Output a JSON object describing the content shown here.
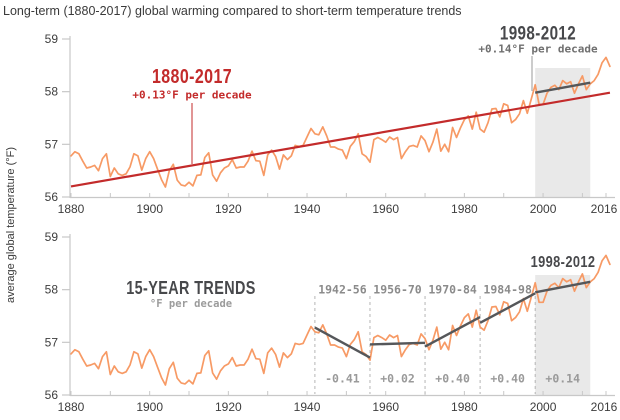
{
  "title": "Long-term (1880-2017) global warming compared to short-term temperature trends",
  "y_axis": {
    "label": "average global temperature (°F)",
    "ticks": [
      "56",
      "57",
      "58",
      "59"
    ],
    "min": 56,
    "max": 59
  },
  "x_axis": {
    "labels": [
      "1880",
      "1900",
      "1920",
      "1940",
      "1960",
      "1980",
      "2000",
      "2016"
    ],
    "label_years": [
      1880,
      1900,
      1920,
      1940,
      1960,
      1980,
      2000,
      2016
    ],
    "minor_tick_step_years": 10
  },
  "colors": {
    "series": "#f79a65",
    "longterm_trend": "#c32b2b",
    "shortterm_trend": "#55575a",
    "highlight_band": "#e9e9e9",
    "dashed_divider": "#b5b5b5",
    "axis": "#c8c8c8",
    "callout_gray": "#9a9a9a",
    "text_dark": "#3a3a3a",
    "text_gray": "#9b9b9b"
  },
  "top_panel": {
    "longterm_label": "1880-2017",
    "longterm_rate": "+0.13°F per decade",
    "shortterm_label": "1998-2012",
    "shortterm_rate": "+0.14°F per decade"
  },
  "bottom_panel": {
    "heading": "15-YEAR TRENDS",
    "subheading": "°F per decade"
  },
  "chart_data": {
    "type": "line",
    "title": "Long-term (1880-2017) global warming compared to short-term temperature trends",
    "ylabel": "average global temperature (°F)",
    "ylim": [
      56,
      59
    ],
    "xlim": [
      1880,
      2017
    ],
    "x_tick_labels": [
      1880,
      1900,
      1920,
      1940,
      1960,
      1980,
      2000,
      2016
    ],
    "grid": false,
    "legend": false,
    "panels": [
      "long-term trend (top)",
      "15-year trends (bottom)"
    ],
    "series": [
      {
        "name": "annual average global temperature (°F)",
        "x_start": 1880,
        "x_step": 1,
        "values": [
          56.78,
          56.86,
          56.82,
          56.68,
          56.55,
          56.57,
          56.6,
          56.5,
          56.73,
          56.82,
          56.39,
          56.55,
          56.44,
          56.41,
          56.44,
          56.57,
          56.82,
          56.78,
          56.51,
          56.73,
          56.86,
          56.73,
          56.53,
          56.33,
          56.19,
          56.5,
          56.62,
          56.32,
          56.23,
          56.21,
          56.28,
          56.21,
          56.41,
          56.42,
          56.75,
          56.84,
          56.42,
          56.3,
          56.46,
          56.55,
          56.59,
          56.71,
          56.55,
          56.57,
          56.57,
          56.68,
          56.87,
          56.69,
          56.68,
          56.41,
          56.8,
          56.89,
          56.77,
          56.53,
          56.8,
          56.71,
          56.78,
          56.98,
          56.96,
          56.98,
          57.14,
          57.3,
          57.2,
          57.18,
          57.33,
          57.16,
          56.95,
          56.95,
          56.91,
          56.89,
          56.73,
          56.96,
          57.05,
          57.2,
          56.82,
          56.77,
          56.66,
          57.09,
          57.13,
          57.09,
          57.04,
          57.14,
          57.09,
          57.13,
          56.73,
          56.86,
          56.96,
          56.98,
          56.95,
          57.16,
          57.07,
          56.86,
          57.04,
          57.29,
          56.87,
          57.0,
          56.86,
          57.32,
          57.13,
          57.31,
          57.47,
          57.54,
          57.29,
          57.61,
          57.29,
          57.23,
          57.41,
          57.67,
          57.68,
          57.52,
          57.77,
          57.74,
          57.41,
          57.47,
          57.58,
          57.83,
          57.59,
          57.86,
          58.13,
          57.76,
          57.76,
          57.97,
          58.08,
          58.12,
          58.04,
          58.21,
          58.15,
          58.19,
          57.97,
          58.15,
          58.3,
          58.04,
          58.15,
          58.21,
          58.33,
          58.55,
          58.65,
          58.48
        ]
      }
    ],
    "trends": {
      "long_term": {
        "period": "1880-2017",
        "rate_label": "+0.13°F per decade",
        "rate_f_per_decade": 0.13,
        "start": {
          "year": 1880,
          "temp": 56.2
        },
        "end": {
          "year": 2017,
          "temp": 57.98
        }
      },
      "top_short_term": {
        "period": "1998-2012",
        "rate_label": "+0.14°F per decade",
        "rate_f_per_decade": 0.14,
        "start": {
          "year": 1998,
          "temp": 57.98
        },
        "end": {
          "year": 2012,
          "temp": 58.17
        }
      },
      "fifteen_year": [
        {
          "period": "1942-56",
          "rate_label": "-0.41",
          "rate_f_per_decade": -0.41,
          "start": {
            "year": 1942,
            "temp": 57.28
          },
          "end": {
            "year": 1956,
            "temp": 56.71
          }
        },
        {
          "period": "1956-70",
          "rate_label": "+0.02",
          "rate_f_per_decade": 0.02,
          "start": {
            "year": 1956,
            "temp": 56.96
          },
          "end": {
            "year": 1970,
            "temp": 56.99
          }
        },
        {
          "period": "1970-84",
          "rate_label": "+0.40",
          "rate_f_per_decade": 0.4,
          "start": {
            "year": 1970,
            "temp": 56.92
          },
          "end": {
            "year": 1984,
            "temp": 57.48
          }
        },
        {
          "period": "1984-98",
          "rate_label": "+0.40",
          "rate_f_per_decade": 0.4,
          "start": {
            "year": 1984,
            "temp": 57.37
          },
          "end": {
            "year": 1998,
            "temp": 57.93
          }
        },
        {
          "period": "1998-2012",
          "rate_label": "+0.14",
          "rate_f_per_decade": 0.14,
          "start": {
            "year": 1998,
            "temp": 57.95
          },
          "end": {
            "year": 2012,
            "temp": 58.15
          }
        }
      ]
    },
    "highlight_band": {
      "label": "1998-2012",
      "start_year": 1998,
      "end_year": 2012
    }
  }
}
